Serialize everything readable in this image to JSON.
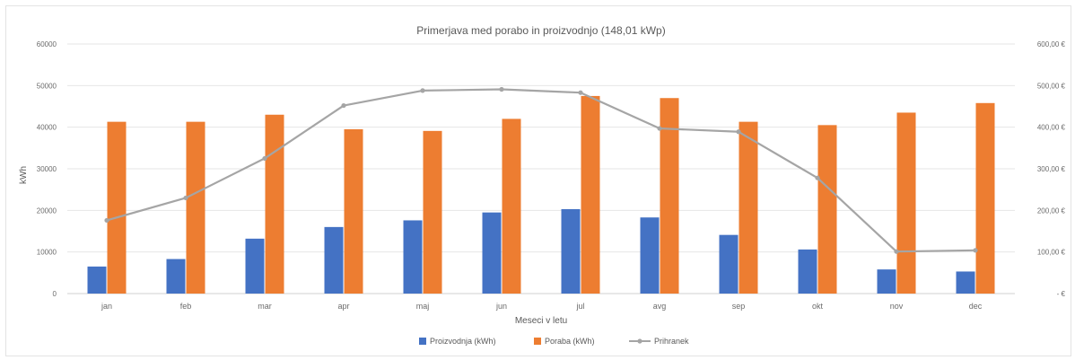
{
  "chart_data": {
    "type": "bar",
    "title": "Primerjava med porabo in proizvodnjo (148,01 kWp)",
    "xlabel": "Meseci v letu",
    "ylabel": "kWh",
    "categories": [
      "jan",
      "feb",
      "mar",
      "apr",
      "maj",
      "jun",
      "jul",
      "avg",
      "sep",
      "okt",
      "nov",
      "dec"
    ],
    "ylim": [
      0,
      60000
    ],
    "y_ticks": [
      "0",
      "10000",
      "20000",
      "30000",
      "40000",
      "50000",
      "60000"
    ],
    "y2lim": [
      0,
      600
    ],
    "y2_ticks": [
      "- €",
      "100,00 €",
      "200,00 €",
      "300,00 €",
      "400,00 €",
      "500,00 €",
      "600,00 €"
    ],
    "grid": true,
    "legend_position": "bottom",
    "series": [
      {
        "name": "Proizvodnja (kWh)",
        "type": "bar",
        "axis": "left",
        "color": "#4472C4",
        "values": [
          6500,
          8300,
          13200,
          16000,
          17600,
          19500,
          20300,
          18300,
          14100,
          10600,
          5800,
          5300
        ]
      },
      {
        "name": "Poraba (kWh)",
        "type": "bar",
        "axis": "left",
        "color": "#ED7D31",
        "values": [
          41300,
          41300,
          43000,
          39500,
          39100,
          42000,
          47500,
          47000,
          41300,
          40500,
          43500,
          45800
        ]
      },
      {
        "name": "Prihranek",
        "type": "line",
        "axis": "right",
        "color": "#A5A5A5",
        "values": [
          176,
          230,
          325,
          452,
          488,
          491,
          483,
          397,
          389,
          278,
          101,
          104
        ]
      }
    ]
  }
}
